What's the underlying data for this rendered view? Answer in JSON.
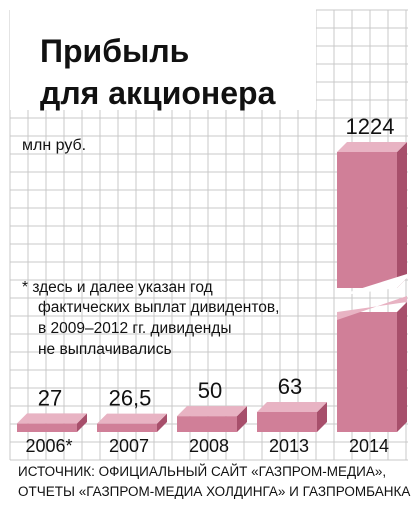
{
  "colors": {
    "grid": "#c9c9c9",
    "bar_front": "#d07f98",
    "bar_top": "#e8b3c3",
    "bar_side": "#a74f6b",
    "text": "#111111"
  },
  "chart_data": {
    "type": "bar",
    "title": [
      "Прибыль",
      "для акционера"
    ],
    "unit": "млн руб.",
    "categories": [
      "2006*",
      "2007",
      "2008",
      "2013",
      "2014"
    ],
    "values": [
      27,
      26.5,
      50,
      63,
      1224
    ],
    "value_labels": [
      "27",
      "26,5",
      "50",
      "63",
      "1224"
    ],
    "broken_axis": true,
    "grid": true,
    "footnote": [
      "* здесь и далее указан год",
      "фактических выплат дивидентов,",
      "в 2009–2012 гг. дивиденды",
      "не выплачивались"
    ],
    "source": [
      "ИСТОЧНИК: ОФИЦИАЛЬНЫЙ САЙТ «ГАЗПРОМ-МЕДИА»,",
      "ОТЧЕТЫ «ГАЗПРОМ-МЕДИА ХОЛДИНГА» И ГАЗПРОМБАНКА"
    ]
  }
}
